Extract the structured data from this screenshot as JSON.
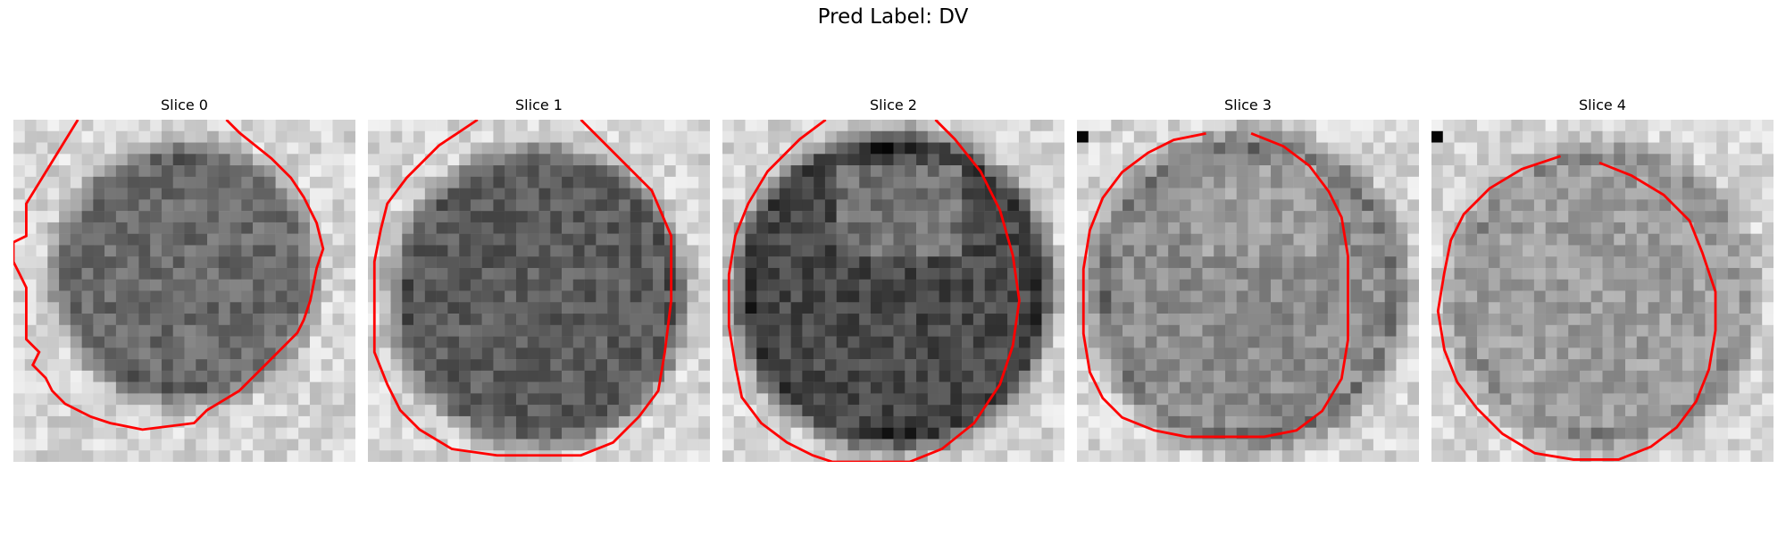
{
  "figure": {
    "title": "Pred Label: DV",
    "panels": [
      {
        "title": "Slice 0",
        "contour": [
          [
            10,
            0
          ],
          [
            2,
            13
          ],
          [
            2,
            18
          ],
          [
            0,
            19
          ],
          [
            0,
            22
          ],
          [
            1,
            24
          ],
          [
            2,
            26
          ],
          [
            2,
            34
          ],
          [
            4,
            36
          ],
          [
            3,
            38
          ],
          [
            5,
            40
          ],
          [
            6,
            42
          ],
          [
            8,
            44
          ],
          [
            12,
            46
          ],
          [
            15,
            47
          ],
          [
            20,
            48
          ],
          [
            28,
            47
          ],
          [
            30,
            45
          ],
          [
            35,
            42
          ],
          [
            39,
            38
          ],
          [
            44,
            33
          ],
          [
            45,
            31
          ],
          [
            46,
            28
          ],
          [
            47,
            23
          ],
          [
            48,
            20
          ],
          [
            47,
            16
          ],
          [
            45,
            12
          ],
          [
            43,
            9
          ],
          [
            40,
            6
          ],
          [
            35,
            2
          ],
          [
            33,
            0
          ]
        ],
        "contour_clipped_top": true
      },
      {
        "title": "Slice 1",
        "contour": [
          [
            17,
            0
          ],
          [
            11,
            4
          ],
          [
            6,
            9
          ],
          [
            3,
            13
          ],
          [
            2,
            17
          ],
          [
            1,
            22
          ],
          [
            1,
            28
          ],
          [
            1,
            36
          ],
          [
            3,
            41
          ],
          [
            5,
            45
          ],
          [
            8,
            48
          ],
          [
            13,
            51
          ],
          [
            20,
            52
          ],
          [
            33,
            52
          ],
          [
            38,
            50
          ],
          [
            42,
            46
          ],
          [
            45,
            42
          ],
          [
            46,
            36
          ],
          [
            47,
            28
          ],
          [
            47,
            18
          ],
          [
            44,
            11
          ],
          [
            38,
            5
          ],
          [
            33,
            0
          ]
        ],
        "contour_clipped_top": true
      },
      {
        "title": "Slice 2",
        "contour": [
          [
            16,
            0
          ],
          [
            12,
            3
          ],
          [
            7,
            8
          ],
          [
            4,
            13
          ],
          [
            2,
            18
          ],
          [
            1,
            24
          ],
          [
            1,
            32
          ],
          [
            2,
            38
          ],
          [
            3,
            43
          ],
          [
            6,
            47
          ],
          [
            10,
            50
          ],
          [
            14,
            52
          ],
          [
            17,
            53
          ],
          [
            29,
            53
          ],
          [
            34,
            51
          ],
          [
            39,
            47
          ],
          [
            43,
            41
          ],
          [
            45,
            35
          ],
          [
            46,
            28
          ],
          [
            45,
            21
          ],
          [
            43,
            14
          ],
          [
            40,
            8
          ],
          [
            36,
            3
          ],
          [
            33,
            0
          ]
        ],
        "contour_clipped_bottom": true
      },
      {
        "title": "Slice 3",
        "contour": [
          [
            20,
            0
          ],
          [
            15,
            1
          ],
          [
            11,
            3
          ],
          [
            7,
            6
          ],
          [
            4,
            10
          ],
          [
            2,
            15
          ],
          [
            1,
            21
          ],
          [
            1,
            31
          ],
          [
            2,
            37
          ],
          [
            4,
            41
          ],
          [
            7,
            44
          ],
          [
            12,
            46
          ],
          [
            17,
            47
          ],
          [
            29,
            47
          ],
          [
            34,
            46
          ],
          [
            38,
            43
          ],
          [
            41,
            38
          ],
          [
            42,
            32
          ],
          [
            42,
            19
          ],
          [
            41,
            13
          ],
          [
            39,
            9
          ],
          [
            36,
            5
          ],
          [
            32,
            2
          ],
          [
            27,
            0
          ]
        ],
        "contour_clipped_bottom": true
      },
      {
        "title": "Slice 4",
        "contour": [
          [
            20,
            0
          ],
          [
            14,
            2
          ],
          [
            9,
            5
          ],
          [
            5,
            9
          ],
          [
            3,
            13
          ],
          [
            2,
            18
          ],
          [
            1,
            24
          ],
          [
            2,
            30
          ],
          [
            4,
            35
          ],
          [
            7,
            39
          ],
          [
            11,
            43
          ],
          [
            16,
            46
          ],
          [
            22,
            47
          ],
          [
            29,
            47
          ],
          [
            34,
            45
          ],
          [
            38,
            42
          ],
          [
            41,
            38
          ],
          [
            43,
            33
          ],
          [
            44,
            27
          ],
          [
            44,
            21
          ],
          [
            42,
            15
          ],
          [
            40,
            10
          ],
          [
            36,
            6
          ],
          [
            31,
            3
          ],
          [
            26,
            1
          ]
        ]
      }
    ]
  },
  "colors": {
    "contour": "#ff0000"
  }
}
